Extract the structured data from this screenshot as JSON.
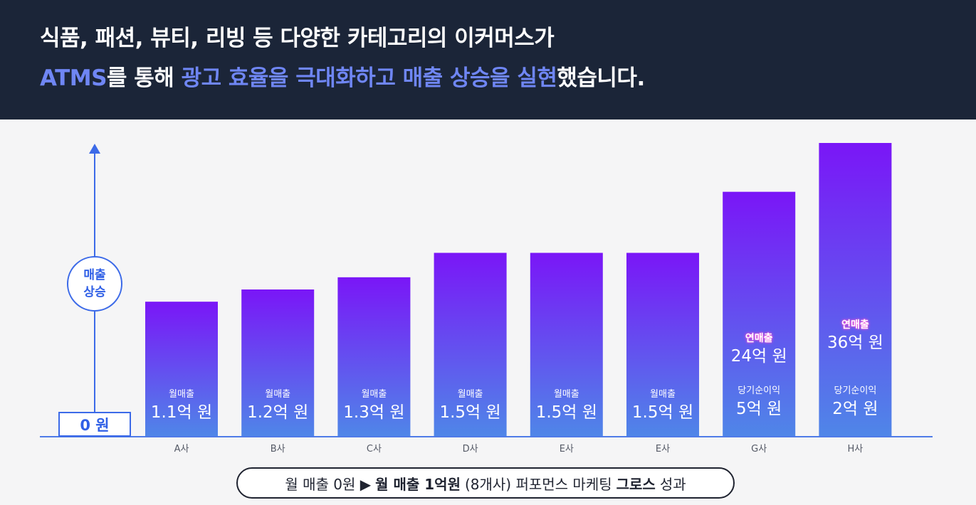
{
  "headline": {
    "line1": "식품, 패션, 뷰티, 리빙 등 다양한 카테고리의 이커머스가",
    "line2_brand": "ATMS",
    "line2_a": "를 통해 ",
    "line2_hl": "광고 효율을 극대화하고 매출 상승을 실현",
    "line2_b": "했습니다."
  },
  "axis": {
    "bubble_line1": "매출",
    "bubble_line2": "상승",
    "zero_label": "0 원"
  },
  "chart_data": {
    "type": "bar",
    "categories": [
      "A사",
      "B사",
      "C사",
      "D사",
      "E사",
      "E사",
      "G사",
      "H사"
    ],
    "series": [
      {
        "values": [
          1.1,
          1.2,
          1.3,
          1.5,
          1.5,
          1.5,
          2.0,
          2.4
        ]
      }
    ],
    "bar_labels": [
      {
        "caption": "월매출",
        "value": "1.1억 원"
      },
      {
        "caption": "월매출",
        "value": "1.2억 원"
      },
      {
        "caption": "월매출",
        "value": "1.3억 원"
      },
      {
        "caption": "월매출",
        "value": "1.5억 원"
      },
      {
        "caption": "월매출",
        "value": "1.5억 원"
      },
      {
        "caption": "월매출",
        "value": "1.5억 원"
      },
      {
        "caption": "연매출",
        "value": "24억 원",
        "caption2": "당기순이익",
        "value2": "5억 원"
      },
      {
        "caption": "연매출",
        "value": "36억 원",
        "caption2": "당기순이익",
        "value2": "2억 원"
      }
    ],
    "ylim": [
      0,
      2.4
    ],
    "grid": false,
    "colors": {
      "top": "#7a16f7",
      "bottom": "#4f86e8",
      "axis": "#3c6ae8"
    }
  },
  "footer": {
    "part1": "월 매출 0원 ▶",
    "part2": "월 매출 1억원",
    "part3": "(8개사) 퍼포먼스 마케팅",
    "part4": "그로스",
    "part5": "성과"
  }
}
